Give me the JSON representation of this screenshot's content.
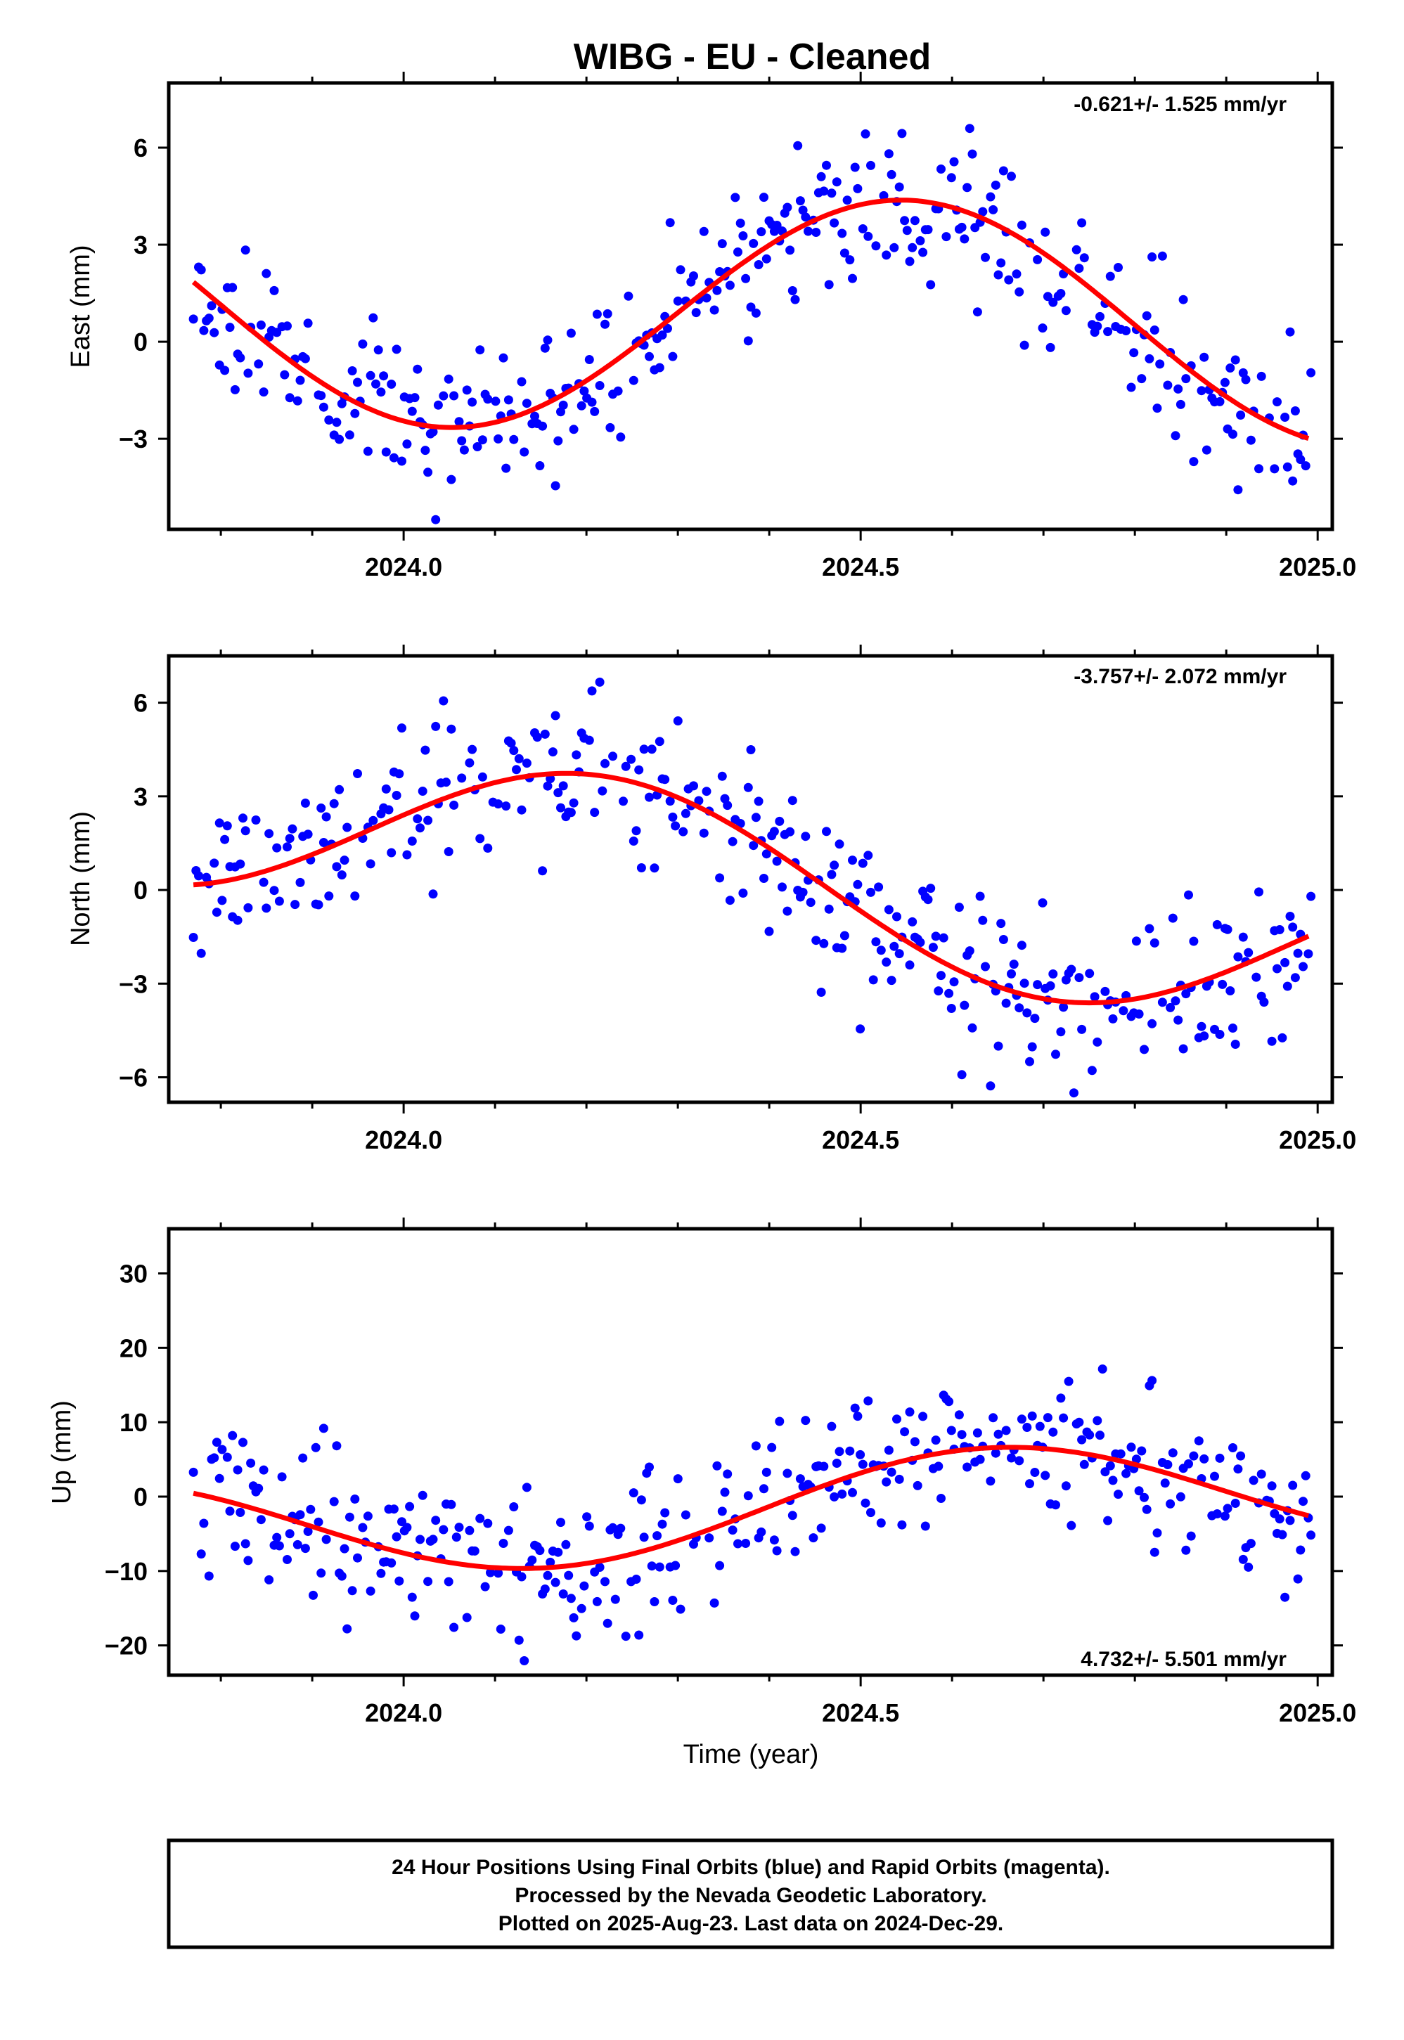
{
  "title": "WIBG  - EU - Cleaned",
  "footer": {
    "lines": [
      "24 Hour Positions Using Final Orbits (blue) and Rapid Orbits (magenta).",
      "Processed by the Nevada Geodetic Laboratory.",
      "Plotted on 2025-Aug-23. Last data on 2024-Dec-29."
    ]
  },
  "colors": {
    "points": "#0000ff",
    "fit": "#ff0000"
  },
  "chart_data": [
    {
      "type": "scatter",
      "name": "east",
      "ylabel": "East (mm)",
      "xlabel": "",
      "xlim": [
        2023.743,
        2025.016
      ],
      "ylim": [
        -5.8,
        8.0
      ],
      "xticks": [
        "2024.0",
        "2024.5",
        "2025.0"
      ],
      "yticks": [
        6,
        3,
        0,
        -3
      ],
      "ytick_labels": [
        "6",
        "3",
        "0",
        "−3"
      ],
      "rate_label": "-0.621+/- 1.525 mm/yr",
      "rate_position": "top-right",
      "fit": {
        "mean": 0.8,
        "trend": -0.621,
        "sin": -1.1,
        "cos": -3.5,
        "t0": 2024.4
      },
      "noise": 1.2,
      "seed": 11
    },
    {
      "type": "scatter",
      "name": "north",
      "ylabel": "North (mm)",
      "xlabel": "",
      "xlim": [
        2023.743,
        2025.016
      ],
      "ylim": [
        -6.8,
        7.5
      ],
      "xticks": [
        "2024.0",
        "2024.5",
        "2025.0"
      ],
      "yticks": [
        6,
        3,
        0,
        -3,
        -6
      ],
      "ytick_labels": [
        "6",
        "3",
        "0",
        "−3",
        "−6"
      ],
      "rate_label": "-3.757+/- 2.072 mm/yr",
      "rate_position": "top-right",
      "fit": {
        "mean": 0.3,
        "trend": -3.757,
        "sin": 2.6,
        "cos": 0.6,
        "t0": 2024.4
      },
      "noise": 1.3,
      "seed": 23
    },
    {
      "type": "scatter",
      "name": "up",
      "ylabel": "Up (mm)",
      "xlabel": "Time (year)",
      "xlim": [
        2023.743,
        2025.016
      ],
      "ylim": [
        -24,
        36
      ],
      "xticks": [
        "2024.0",
        "2024.5",
        "2025.0"
      ],
      "yticks": [
        30,
        20,
        10,
        0,
        -10,
        -20
      ],
      "ytick_labels": [
        "30",
        "20",
        "10",
        "0",
        "−10",
        "−20"
      ],
      "rate_label": "4.732+/- 5.501 mm/yr",
      "rate_position": "bottom-right",
      "fit": {
        "mean": -1.5,
        "trend": 4.732,
        "sin": -5.5,
        "cos": -4.2,
        "t0": 2024.4
      },
      "noise": 5.2,
      "seed": 37
    }
  ]
}
